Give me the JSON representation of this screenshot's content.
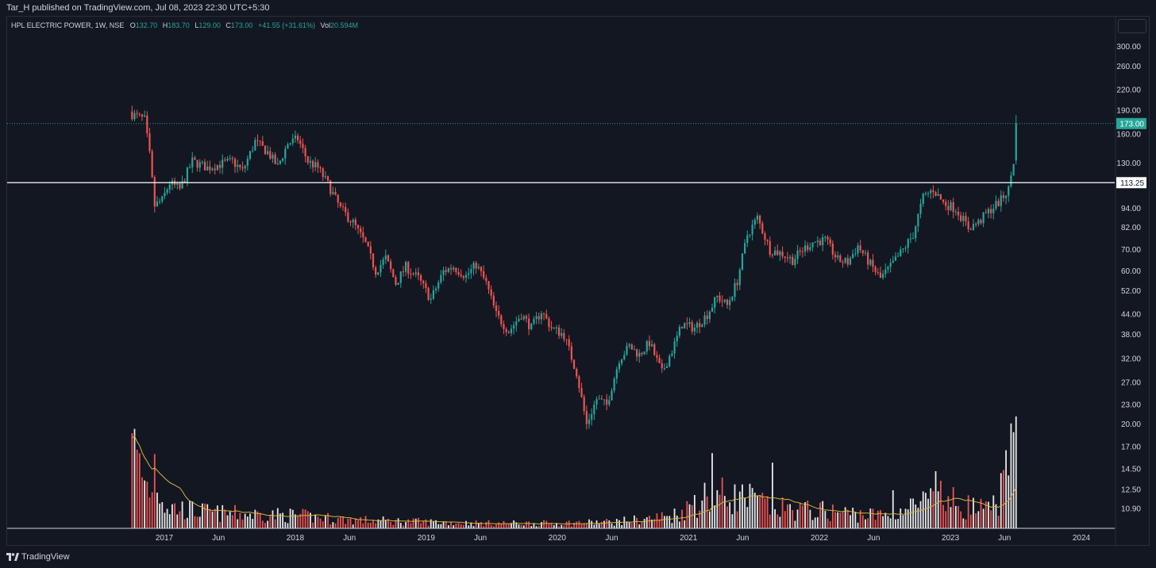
{
  "header": {
    "published_by": "Tar_H published on TradingView.com, Jul 08, 2023 22:30 UTC+5:30"
  },
  "legend": {
    "symbol": "HPL ELECTRIC POWER, 1W, NSE",
    "open_label": "O",
    "open_value": "132.70",
    "high_label": "H",
    "high_value": "183.70",
    "low_label": "L",
    "low_value": "129.00",
    "close_label": "C",
    "close_value": "173.00",
    "change_value": "+41.55 (+31.61%)",
    "volume_label": "Vol",
    "volume_value": "20.594M"
  },
  "footer": {
    "brand": "TradingView"
  },
  "colors": {
    "background": "#131722",
    "up": "#26a69a",
    "down": "#ef5350",
    "volume_up": "#e8e8e8",
    "volume_down": "#ef5350",
    "volume_ma": "#d4b43c",
    "horizontal_line": "#ffffff",
    "price_line": "#26a69a"
  },
  "chart_data": {
    "type": "candlestick",
    "interval": "1W",
    "y_scale": "log",
    "y_ticks": [
      10.9,
      12.5,
      14.5,
      17.0,
      20.0,
      23.0,
      27.0,
      32.0,
      38.0,
      44.0,
      52.0,
      60.0,
      70.0,
      82.0,
      94.0,
      130.0,
      160.0,
      190.0,
      220.0,
      260.0,
      300.0
    ],
    "y_tick_labels": [
      "10.90",
      "12.50",
      "14.50",
      "17.00",
      "20.00",
      "23.00",
      "27.00",
      "32.00",
      "38.00",
      "44.00",
      "52.00",
      "60.00",
      "70.00",
      "82.00",
      "94.00",
      "130.00",
      "160.00",
      "190.00",
      "220.00",
      "260.00",
      "300.00"
    ],
    "x_ticks": [
      {
        "label": "2017",
        "date": "2017-01-01"
      },
      {
        "label": "Jun",
        "date": "2017-06-01"
      },
      {
        "label": "2018",
        "date": "2018-01-01"
      },
      {
        "label": "Jun",
        "date": "2018-06-01"
      },
      {
        "label": "2019",
        "date": "2019-01-01"
      },
      {
        "label": "Jun",
        "date": "2019-06-01"
      },
      {
        "label": "2020",
        "date": "2020-01-01"
      },
      {
        "label": "Jun",
        "date": "2020-06-01"
      },
      {
        "label": "2021",
        "date": "2021-01-01"
      },
      {
        "label": "Jun",
        "date": "2021-06-01"
      },
      {
        "label": "2022",
        "date": "2022-01-01"
      },
      {
        "label": "Jun",
        "date": "2022-06-01"
      },
      {
        "label": "2023",
        "date": "2023-01-01"
      },
      {
        "label": "Jun",
        "date": "2023-06-01"
      },
      {
        "label": "2024",
        "date": "2024-01-01"
      }
    ],
    "horizontal_line": {
      "value": 113.25,
      "label": "113.25"
    },
    "last_price": {
      "value": 173.0,
      "label": "173.00"
    },
    "closes_path": [
      [
        "2016-10-03",
        185
      ],
      [
        "2016-11-07",
        178
      ],
      [
        "2016-11-21",
        138
      ],
      [
        "2016-12-05",
        96
      ],
      [
        "2016-12-26",
        100
      ],
      [
        "2017-01-16",
        113
      ],
      [
        "2017-02-13",
        108
      ],
      [
        "2017-03-20",
        132
      ],
      [
        "2017-05-01",
        126
      ],
      [
        "2017-06-12",
        130
      ],
      [
        "2017-07-10",
        132
      ],
      [
        "2017-08-07",
        123
      ],
      [
        "2017-09-11",
        152
      ],
      [
        "2017-10-16",
        141
      ],
      [
        "2017-11-13",
        127
      ],
      [
        "2017-12-11",
        150
      ],
      [
        "2018-01-08",
        155
      ],
      [
        "2018-02-05",
        132
      ],
      [
        "2018-03-05",
        126
      ],
      [
        "2018-04-02",
        112
      ],
      [
        "2018-05-07",
        94
      ],
      [
        "2018-06-11",
        85
      ],
      [
        "2018-07-16",
        73
      ],
      [
        "2018-08-13",
        60
      ],
      [
        "2018-09-10",
        66
      ],
      [
        "2018-10-08",
        55
      ],
      [
        "2018-11-05",
        62
      ],
      [
        "2018-12-10",
        57
      ],
      [
        "2019-01-14",
        49
      ],
      [
        "2019-02-18",
        60
      ],
      [
        "2019-03-18",
        62
      ],
      [
        "2019-04-22",
        58
      ],
      [
        "2019-05-20",
        63
      ],
      [
        "2019-06-17",
        55
      ],
      [
        "2019-07-15",
        44
      ],
      [
        "2019-08-19",
        39
      ],
      [
        "2019-09-23",
        44
      ],
      [
        "2019-10-21",
        40
      ],
      [
        "2019-11-18",
        45
      ],
      [
        "2019-12-16",
        40
      ],
      [
        "2020-01-20",
        38
      ],
      [
        "2020-02-24",
        29
      ],
      [
        "2020-03-23",
        20
      ],
      [
        "2020-04-20",
        24
      ],
      [
        "2020-05-18",
        23
      ],
      [
        "2020-06-22",
        32
      ],
      [
        "2020-07-20",
        35
      ],
      [
        "2020-08-17",
        33
      ],
      [
        "2020-09-14",
        36
      ],
      [
        "2020-10-19",
        29
      ],
      [
        "2020-11-16",
        34
      ],
      [
        "2020-12-14",
        41
      ],
      [
        "2021-01-18",
        40
      ],
      [
        "2021-02-22",
        44
      ],
      [
        "2021-03-22",
        50
      ],
      [
        "2021-04-19",
        47
      ],
      [
        "2021-05-17",
        56
      ],
      [
        "2021-06-14",
        78
      ],
      [
        "2021-07-12",
        88
      ],
      [
        "2021-08-16",
        70
      ],
      [
        "2021-09-20",
        68
      ],
      [
        "2021-10-18",
        65
      ],
      [
        "2021-11-15",
        70
      ],
      [
        "2021-12-13",
        74
      ],
      [
        "2022-01-17",
        75
      ],
      [
        "2022-02-21",
        65
      ],
      [
        "2022-03-21",
        64
      ],
      [
        "2022-04-18",
        72
      ],
      [
        "2022-05-23",
        63
      ],
      [
        "2022-06-20",
        57
      ],
      [
        "2022-07-18",
        62
      ],
      [
        "2022-08-22",
        70
      ],
      [
        "2022-09-19",
        78
      ],
      [
        "2022-10-17",
        102
      ],
      [
        "2022-11-14",
        108
      ],
      [
        "2022-12-12",
        98
      ],
      [
        "2023-01-16",
        94
      ],
      [
        "2023-02-20",
        82
      ],
      [
        "2023-03-20",
        85
      ],
      [
        "2023-04-17",
        92
      ],
      [
        "2023-05-22",
        100
      ],
      [
        "2023-06-12",
        108
      ],
      [
        "2023-06-26",
        132
      ],
      [
        "2023-07-03",
        173
      ]
    ],
    "volume_path": [
      [
        "2016-10-03",
        2.0
      ],
      [
        "2016-11-07",
        1.1
      ],
      [
        "2016-11-21",
        0.9
      ],
      [
        "2016-12-05",
        1.4
      ],
      [
        "2017-01-09",
        0.5
      ],
      [
        "2017-06-01",
        0.35
      ],
      [
        "2018-01-01",
        0.3
      ],
      [
        "2018-06-01",
        0.2
      ],
      [
        "2019-01-01",
        0.15
      ],
      [
        "2019-06-01",
        0.12
      ],
      [
        "2020-01-01",
        0.12
      ],
      [
        "2020-06-01",
        0.15
      ],
      [
        "2020-11-16",
        0.3
      ],
      [
        "2021-02-22",
        0.8
      ],
      [
        "2021-06-14",
        0.7
      ],
      [
        "2021-09-20",
        0.45
      ],
      [
        "2022-01-17",
        0.4
      ],
      [
        "2022-06-20",
        0.3
      ],
      [
        "2022-10-17",
        0.6
      ],
      [
        "2023-01-16",
        0.6
      ],
      [
        "2023-04-17",
        0.4
      ],
      [
        "2023-06-26",
        1.8
      ],
      [
        "2023-07-03",
        2.35
      ]
    ],
    "volume_spikes": [
      [
        "2016-10-03",
        2.0,
        "down"
      ],
      [
        "2016-12-05",
        1.56,
        "down"
      ],
      [
        "2016-12-12",
        0.75,
        "up"
      ],
      [
        "2021-03-08",
        1.58,
        "up"
      ],
      [
        "2021-08-23",
        1.38,
        "up"
      ],
      [
        "2022-11-21",
        1.2,
        "up"
      ],
      [
        "2022-12-05",
        1.0,
        "down"
      ],
      [
        "2023-06-26",
        2.02,
        "up"
      ],
      [
        "2023-07-03",
        2.35,
        "up"
      ],
      [
        "2022-07-25",
        0.8,
        "up"
      ],
      [
        "2021-01-18",
        0.7,
        "up"
      ]
    ]
  }
}
